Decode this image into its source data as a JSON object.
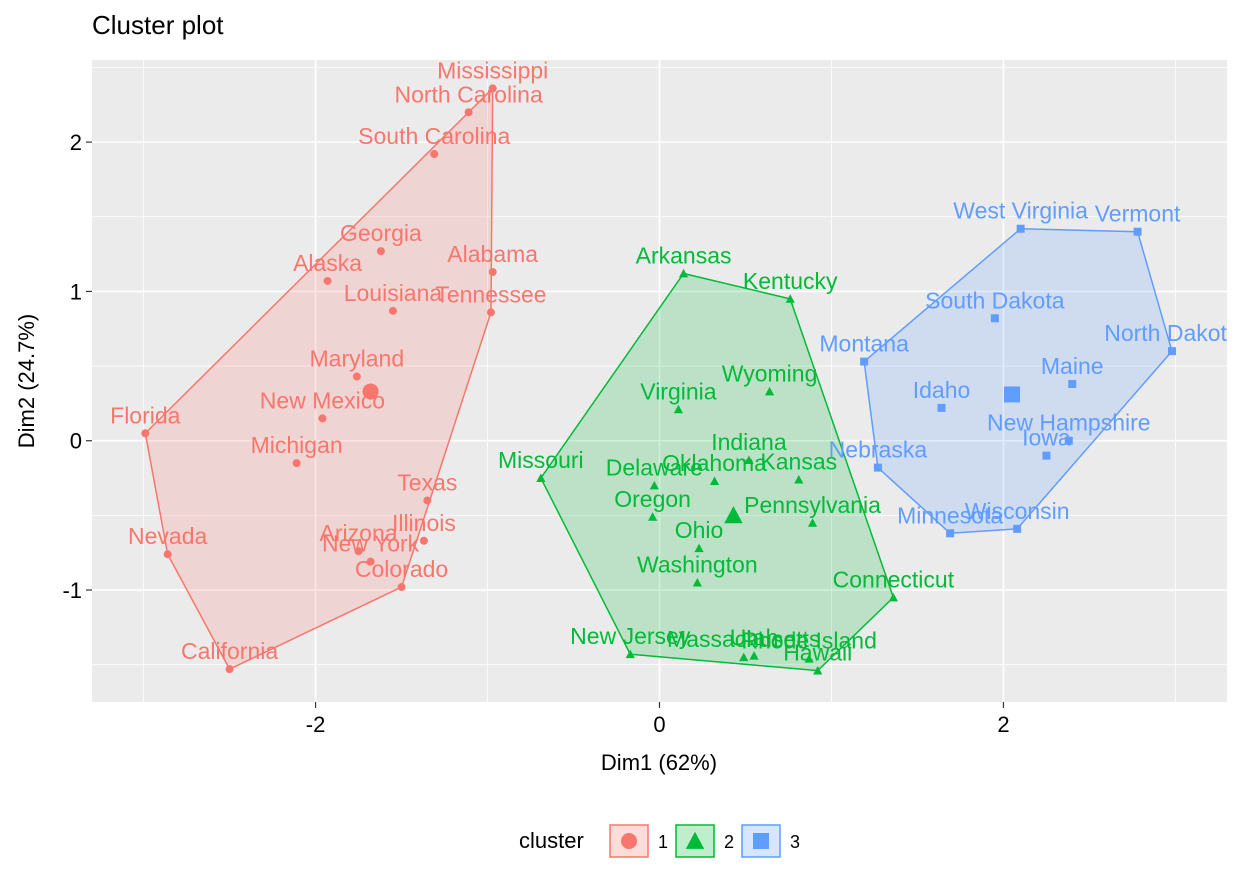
{
  "chart_data": {
    "type": "scatter",
    "title": "Cluster plot",
    "xlabel": "Dim1 (62%)",
    "ylabel": "Dim2 (24.7%)",
    "xlim": [
      -3.3,
      3.3
    ],
    "ylim": [
      -1.75,
      2.55
    ],
    "x_ticks": [
      -2,
      0,
      2
    ],
    "y_ticks": [
      -1,
      0,
      1,
      2
    ],
    "x_tick_labels": [
      "-2",
      "0",
      "2"
    ],
    "y_tick_labels": [
      "-1",
      "0",
      "1",
      "2"
    ],
    "grid": true,
    "legend": {
      "title": "cluster",
      "position": "bottom",
      "entries": [
        "1",
        "2",
        "3"
      ]
    },
    "colors": {
      "1": "#F8766D",
      "2": "#00BA38",
      "3": "#619CFF"
    },
    "series": [
      {
        "name": "1",
        "marker": "circle",
        "center": [
          -1.68,
          0.33
        ],
        "points": [
          {
            "label": "Mississippi",
            "x": -0.97,
            "y": 2.36
          },
          {
            "label": "North Carolina",
            "x": -1.11,
            "y": 2.2
          },
          {
            "label": "South Carolina",
            "x": -1.31,
            "y": 1.92
          },
          {
            "label": "Georgia",
            "x": -1.62,
            "y": 1.27
          },
          {
            "label": "Alaska",
            "x": -1.93,
            "y": 1.07
          },
          {
            "label": "Alabama",
            "x": -0.97,
            "y": 1.13
          },
          {
            "label": "Louisiana",
            "x": -1.55,
            "y": 0.87
          },
          {
            "label": "Tennessee",
            "x": -0.98,
            "y": 0.86
          },
          {
            "label": "Maryland",
            "x": -1.76,
            "y": 0.43
          },
          {
            "label": "New Mexico",
            "x": -1.96,
            "y": 0.15
          },
          {
            "label": "Florida",
            "x": -2.99,
            "y": 0.05
          },
          {
            "label": "Michigan",
            "x": -2.11,
            "y": -0.15
          },
          {
            "label": "Texas",
            "x": -1.35,
            "y": -0.4
          },
          {
            "label": "Illinois",
            "x": -1.37,
            "y": -0.67
          },
          {
            "label": "Arizona",
            "x": -1.75,
            "y": -0.74
          },
          {
            "label": "New York",
            "x": -1.68,
            "y": -0.81
          },
          {
            "label": "Colorado",
            "x": -1.5,
            "y": -0.98
          },
          {
            "label": "Nevada",
            "x": -2.86,
            "y": -0.76
          },
          {
            "label": "California",
            "x": -2.5,
            "y": -1.53
          }
        ],
        "hull": [
          "California",
          "Nevada",
          "Florida",
          "Mississippi",
          "Tennessee",
          "Colorado"
        ]
      },
      {
        "name": "2",
        "marker": "triangle",
        "center": [
          0.43,
          -0.5
        ],
        "points": [
          {
            "label": "Arkansas",
            "x": 0.14,
            "y": 1.12
          },
          {
            "label": "Kentucky",
            "x": 0.76,
            "y": 0.95
          },
          {
            "label": "Wyoming",
            "x": 0.64,
            "y": 0.33
          },
          {
            "label": "Virginia",
            "x": 0.11,
            "y": 0.21
          },
          {
            "label": "Indiana",
            "x": 0.52,
            "y": -0.13
          },
          {
            "label": "Missouri",
            "x": -0.69,
            "y": -0.25
          },
          {
            "label": "Delaware",
            "x": -0.03,
            "y": -0.3
          },
          {
            "label": "Oklahoma",
            "x": 0.32,
            "y": -0.27
          },
          {
            "label": "Kansas",
            "x": 0.81,
            "y": -0.26
          },
          {
            "label": "Oregon",
            "x": -0.04,
            "y": -0.51
          },
          {
            "label": "Pennsylvania",
            "x": 0.89,
            "y": -0.55
          },
          {
            "label": "Ohio",
            "x": 0.23,
            "y": -0.72
          },
          {
            "label": "Washington",
            "x": 0.22,
            "y": -0.95
          },
          {
            "label": "Connecticut",
            "x": 1.36,
            "y": -1.05
          },
          {
            "label": "New Jersey",
            "x": -0.17,
            "y": -1.43
          },
          {
            "label": "Massachusetts",
            "x": 0.49,
            "y": -1.45
          },
          {
            "label": "Utah",
            "x": 0.55,
            "y": -1.44
          },
          {
            "label": "Rhode Island",
            "x": 0.87,
            "y": -1.46
          },
          {
            "label": "Hawaii",
            "x": 0.92,
            "y": -1.54
          }
        ],
        "hull": [
          "New Jersey",
          "Missouri",
          "Arkansas",
          "Kentucky",
          "Connecticut",
          "Hawaii"
        ]
      },
      {
        "name": "3",
        "marker": "square",
        "center": [
          2.05,
          0.31
        ],
        "points": [
          {
            "label": "West Virginia",
            "x": 2.1,
            "y": 1.42
          },
          {
            "label": "Vermont",
            "x": 2.78,
            "y": 1.4
          },
          {
            "label": "South Dakota",
            "x": 1.95,
            "y": 0.82
          },
          {
            "label": "North Dakota",
            "x": 2.98,
            "y": 0.6
          },
          {
            "label": "Montana",
            "x": 1.19,
            "y": 0.53
          },
          {
            "label": "Maine",
            "x": 2.4,
            "y": 0.38
          },
          {
            "label": "Idaho",
            "x": 1.64,
            "y": 0.22
          },
          {
            "label": "New Hampshire",
            "x": 2.38,
            "y": 0.0
          },
          {
            "label": "Iowa",
            "x": 2.25,
            "y": -0.1
          },
          {
            "label": "Nebraska",
            "x": 1.27,
            "y": -0.18
          },
          {
            "label": "Wisconsin",
            "x": 2.08,
            "y": -0.59
          },
          {
            "label": "Minnesota",
            "x": 1.69,
            "y": -0.62
          }
        ],
        "hull": [
          "Minnesota",
          "Nebraska",
          "Montana",
          "West Virginia",
          "Vermont",
          "North Dakota",
          "Wisconsin"
        ]
      }
    ]
  }
}
